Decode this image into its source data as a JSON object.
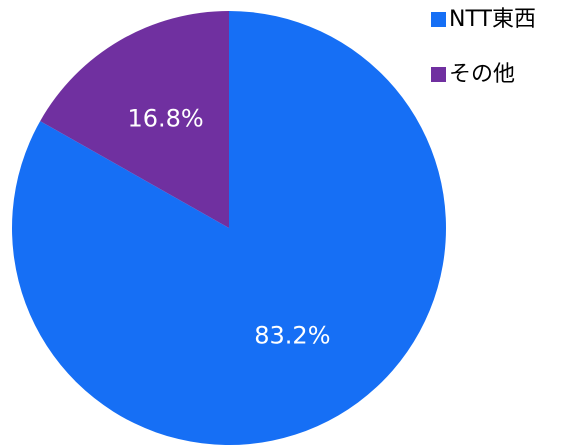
{
  "chart_data": {
    "type": "pie",
    "categories": [
      "NTT東西",
      "その他"
    ],
    "values": [
      83.2,
      16.8
    ],
    "value_labels": [
      "83.2%",
      "16.8%"
    ],
    "colors": [
      "#166ff5",
      "#7030a0"
    ],
    "legend": "top-right"
  }
}
